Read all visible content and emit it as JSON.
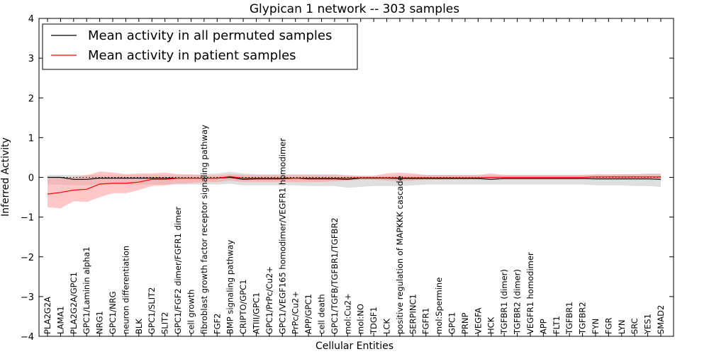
{
  "chart_data": {
    "type": "line",
    "title": "Glypican 1 network -- 303 samples",
    "xlabel": "Cellular Entities",
    "ylabel": "Inferred Activity",
    "ylim": [
      -4,
      4
    ],
    "yticks": [
      -4,
      -3,
      -2,
      -1,
      0,
      1,
      2,
      3,
      4
    ],
    "grid": false,
    "legend_position": "top-left",
    "categories": [
      "PLA2G2A",
      "LAMA1",
      "PLA2G2A/GPC1",
      "GPC1/Laminin alpha1",
      "NRG1",
      "GPC1/NRG",
      "neuron differentiation",
      "BLK",
      "GPC1/SLIT2",
      "SLIT2",
      "GPC1/FGF2 dimer/FGFR1 dimer",
      "cell growth",
      "fibroblast growth factor receptor signaling pathway",
      "FGF2",
      "BMP signaling pathway",
      "CRIPTO/GPC1",
      "ATIII/GPC1",
      "GPC1/PrPc/Cu2+",
      "GPC1/VEGF165 homodimer/VEGFR1 homodimer",
      "PrPc/Cu2+",
      "APP/GPC1",
      "cell death",
      "GPC1/TGFB/TGFBR1/TGFBR2",
      "mol:Cu2+",
      "mol:NO",
      "TDGF1",
      "LCK",
      "positive regulation of MAPKKK cascade",
      "SERPINC1",
      "FGFR1",
      "mol:Spermine",
      "GPC1",
      "PRNP",
      "VEGFA",
      "HCK",
      "TGFBR1 (dimer)",
      "TGFBR2 (dimer)",
      "VEGFR1 homodimer",
      "APP",
      "FLT1",
      "TGFBR1",
      "TGFBR2",
      "FYN",
      "FGR",
      "LYN",
      "SRC",
      "YES1",
      "SMAD2"
    ],
    "series": [
      {
        "name": "Mean activity in all permuted samples",
        "color": "#000000",
        "band_color": "#bfbfbf",
        "values": [
          0.0,
          0.0,
          -0.05,
          -0.05,
          -0.02,
          -0.02,
          -0.02,
          -0.02,
          -0.02,
          -0.02,
          -0.02,
          -0.02,
          -0.02,
          -0.02,
          0.0,
          -0.05,
          -0.04,
          -0.04,
          -0.04,
          -0.02,
          -0.04,
          -0.04,
          -0.04,
          -0.05,
          -0.02,
          -0.02,
          -0.02,
          -0.03,
          -0.03,
          -0.03,
          -0.03,
          -0.03,
          -0.03,
          -0.03,
          -0.05,
          -0.03,
          -0.03,
          -0.03,
          -0.03,
          -0.03,
          -0.03,
          -0.03,
          -0.04,
          -0.04,
          -0.04,
          -0.04,
          -0.04,
          -0.05
        ],
        "lower": [
          -0.18,
          -0.18,
          -0.2,
          -0.2,
          -0.18,
          -0.18,
          -0.18,
          -0.18,
          -0.18,
          -0.18,
          -0.18,
          -0.18,
          -0.18,
          -0.18,
          -0.16,
          -0.2,
          -0.2,
          -0.2,
          -0.2,
          -0.2,
          -0.22,
          -0.22,
          -0.22,
          -0.26,
          -0.24,
          -0.22,
          -0.22,
          -0.22,
          -0.2,
          -0.18,
          -0.18,
          -0.18,
          -0.18,
          -0.18,
          -0.18,
          -0.18,
          -0.18,
          -0.18,
          -0.18,
          -0.18,
          -0.18,
          -0.18,
          -0.2,
          -0.2,
          -0.2,
          -0.22,
          -0.22,
          -0.24
        ],
        "upper": [
          0.06,
          0.06,
          0.06,
          0.06,
          0.06,
          0.06,
          0.06,
          0.06,
          0.06,
          0.06,
          0.06,
          0.06,
          0.08,
          0.1,
          0.14,
          0.1,
          0.08,
          0.08,
          0.08,
          0.08,
          0.08,
          0.08,
          0.08,
          0.06,
          0.04,
          0.04,
          0.04,
          0.06,
          0.06,
          0.06,
          0.06,
          0.06,
          0.06,
          0.06,
          0.06,
          0.06,
          0.06,
          0.06,
          0.06,
          0.06,
          0.06,
          0.06,
          0.06,
          0.06,
          0.08,
          0.08,
          0.1,
          0.1
        ]
      },
      {
        "name": "Mean activity in patient samples",
        "color": "#ff0000",
        "band_color": "#ff9999",
        "values": [
          -0.42,
          -0.38,
          -0.32,
          -0.3,
          -0.17,
          -0.15,
          -0.15,
          -0.12,
          -0.05,
          -0.05,
          -0.02,
          -0.02,
          -0.02,
          -0.02,
          0.02,
          -0.02,
          -0.02,
          -0.02,
          -0.02,
          -0.02,
          -0.02,
          -0.02,
          -0.02,
          -0.02,
          -0.01,
          -0.01,
          -0.01,
          -0.01,
          -0.01,
          -0.01,
          -0.01,
          -0.01,
          -0.01,
          -0.01,
          0.0,
          0.0,
          0.0,
          0.0,
          0.0,
          0.0,
          0.0,
          0.0,
          0.01,
          0.01,
          0.01,
          0.01,
          0.01,
          0.01
        ],
        "lower": [
          -0.75,
          -0.78,
          -0.6,
          -0.62,
          -0.5,
          -0.4,
          -0.4,
          -0.32,
          -0.22,
          -0.2,
          -0.15,
          -0.15,
          -0.12,
          -0.12,
          -0.08,
          -0.12,
          -0.12,
          -0.12,
          -0.12,
          -0.12,
          -0.12,
          -0.12,
          -0.1,
          -0.08,
          -0.06,
          -0.06,
          -0.08,
          -0.1,
          -0.08,
          -0.06,
          -0.06,
          -0.05,
          -0.05,
          -0.05,
          -0.06,
          -0.05,
          -0.05,
          -0.05,
          -0.05,
          -0.05,
          -0.05,
          -0.05,
          -0.05,
          -0.05,
          -0.05,
          -0.05,
          -0.05,
          -0.04
        ],
        "upper": [
          -0.02,
          0.0,
          0.0,
          0.05,
          0.15,
          0.12,
          0.08,
          0.1,
          0.1,
          0.12,
          0.08,
          0.08,
          0.05,
          0.05,
          0.08,
          0.06,
          0.06,
          0.06,
          0.06,
          0.06,
          0.06,
          0.06,
          0.06,
          0.04,
          0.04,
          0.04,
          0.1,
          0.12,
          0.1,
          0.06,
          0.06,
          0.06,
          0.06,
          0.06,
          0.1,
          0.06,
          0.06,
          0.06,
          0.06,
          0.06,
          0.06,
          0.06,
          0.08,
          0.08,
          0.08,
          0.08,
          0.08,
          0.08
        ]
      }
    ],
    "reference_line": {
      "y": 0,
      "style": "dotted"
    }
  }
}
